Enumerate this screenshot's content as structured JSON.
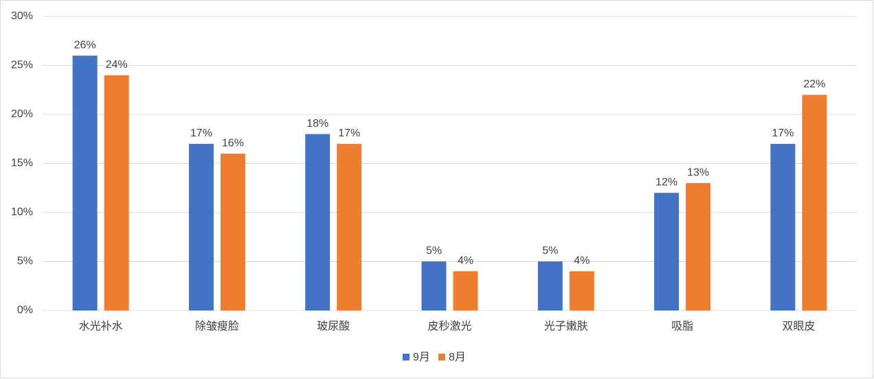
{
  "chart_data": {
    "type": "bar",
    "categories": [
      "水光补水",
      "除皱瘦脸",
      "玻尿酸",
      "皮秒激光",
      "光子嫩肤",
      "吸脂",
      "双眼皮"
    ],
    "series": [
      {
        "name": "9月",
        "color": "#4472c4",
        "values": [
          26,
          17,
          18,
          5,
          5,
          12,
          17
        ],
        "value_labels": [
          "26%",
          "17%",
          "18%",
          "5%",
          "5%",
          "12%",
          "17%"
        ]
      },
      {
        "name": "8月",
        "color": "#ed7d31",
        "values": [
          24,
          16,
          17,
          4,
          4,
          13,
          22
        ],
        "value_labels": [
          "24%",
          "16%",
          "17%",
          "4%",
          "4%",
          "13%",
          "22%"
        ]
      }
    ],
    "ylim": [
      0,
      30
    ],
    "yticks": [
      {
        "value": 0,
        "label": "0%"
      },
      {
        "value": 5,
        "label": "5%"
      },
      {
        "value": 10,
        "label": "10%"
      },
      {
        "value": 15,
        "label": "15%"
      },
      {
        "value": 20,
        "label": "20%"
      },
      {
        "value": 25,
        "label": "25%"
      },
      {
        "value": 30,
        "label": "30%"
      }
    ],
    "grid": true,
    "legend": "bottom"
  }
}
